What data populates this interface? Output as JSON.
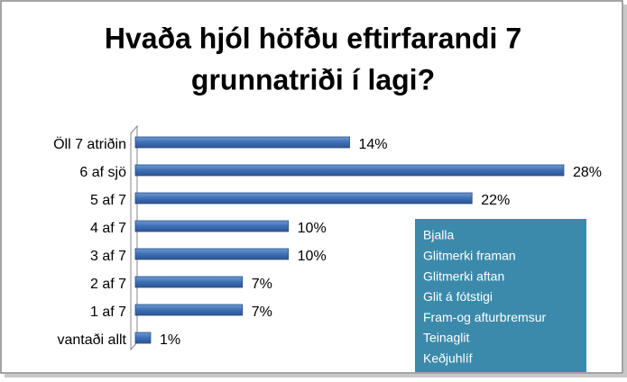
{
  "chart_data": {
    "type": "bar",
    "orientation": "horizontal",
    "title": [
      "Hvaða hjól höfðu eftirfarandi 7",
      "grunnatriði í lagi?"
    ],
    "categories": [
      "Öll 7 atriðin",
      "6 af sjö",
      "5 af 7",
      "4 af 7",
      "3 af 7",
      "2 af 7",
      "1 af 7",
      "vantaði allt"
    ],
    "values": [
      14,
      28,
      22,
      10,
      10,
      7,
      7,
      1
    ],
    "value_labels": [
      "14%",
      "28%",
      "22%",
      "10%",
      "10%",
      "7%",
      "7%",
      "1%"
    ],
    "color": "#4f81bd",
    "annotation": [
      "Bjalla",
      "Glitmerki framan",
      "Glitmerki aftan",
      "Glit á fótstigi",
      "Fram-og afturbremsur",
      "Teinaglit",
      "Keðjuhlíf"
    ]
  }
}
